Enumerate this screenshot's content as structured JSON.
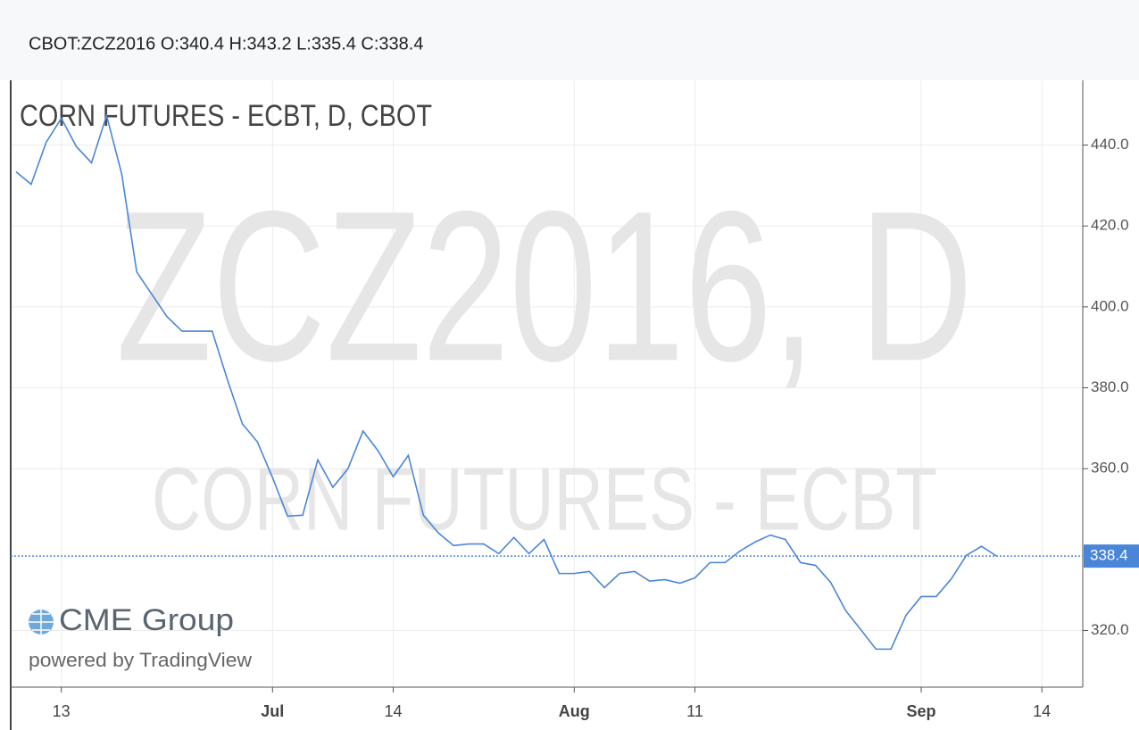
{
  "header": "CBOT:ZCZ2016 O:340.4 H:343.2 L:335.4 C:338.4",
  "chart_data": {
    "type": "line",
    "title": "CORN FUTURES - ECBT, D, CBOT",
    "watermark": "ZCZ2016, D",
    "watermark_subtitle": "CORN FUTURES - ECBT",
    "logo": "CME Group",
    "logo_subtitle": "powered by TradingView",
    "categories": [
      null,
      null,
      null,
      "13",
      null,
      null,
      null,
      null,
      null,
      null,
      null,
      null,
      null,
      null,
      null,
      null,
      null,
      "Jul",
      null,
      null,
      null,
      null,
      null,
      null,
      null,
      "14",
      null,
      null,
      null,
      null,
      null,
      null,
      null,
      null,
      null,
      null,
      null,
      "Aug",
      null,
      null,
      null,
      null,
      null,
      null,
      null,
      "11",
      null,
      null,
      null,
      null,
      null,
      null,
      null,
      null,
      null,
      null,
      null,
      null,
      null,
      null,
      "Sep",
      null,
      null,
      null,
      null,
      null,
      null,
      null,
      "14"
    ],
    "series": [
      {
        "name": "ZCZ2016",
        "color": "#4a86d8",
        "values": [
          433.4,
          430.3,
          440.7,
          446.6,
          439.6,
          435.6,
          447.3,
          432.9,
          408.6,
          403.1,
          397.6,
          394.0,
          394.0,
          394.0,
          382.1,
          371.1,
          366.6,
          357.8,
          348.3,
          348.5,
          362.2,
          355.4,
          360.0,
          369.3,
          364.4,
          358.0,
          363.3,
          348.5,
          344.1,
          341.0,
          341.4,
          341.4,
          339.0,
          343.0,
          339.0,
          342.5,
          334.1,
          334.1,
          334.6,
          330.6,
          334.1,
          334.6,
          332.2,
          332.6,
          331.7,
          333.0,
          336.8,
          336.8,
          339.7,
          341.9,
          343.6,
          342.5,
          336.8,
          336.1,
          331.9,
          324.9,
          320.2,
          315.4,
          315.4,
          323.8,
          328.4,
          328.4,
          332.8,
          338.6,
          340.8,
          338.4,
          null,
          null,
          null
        ]
      }
    ],
    "last_price": 338.4,
    "ylim": [
      306,
      456
    ],
    "yticks": [
      {
        "value": 320,
        "label": "320.0"
      },
      {
        "value": 360,
        "label": "360.0"
      },
      {
        "value": 380,
        "label": "380.0"
      },
      {
        "value": 400,
        "label": "400.0"
      },
      {
        "value": 420,
        "label": "420.0"
      },
      {
        "value": 440,
        "label": "440.0"
      }
    ],
    "grid": true,
    "axis_side": "right"
  }
}
